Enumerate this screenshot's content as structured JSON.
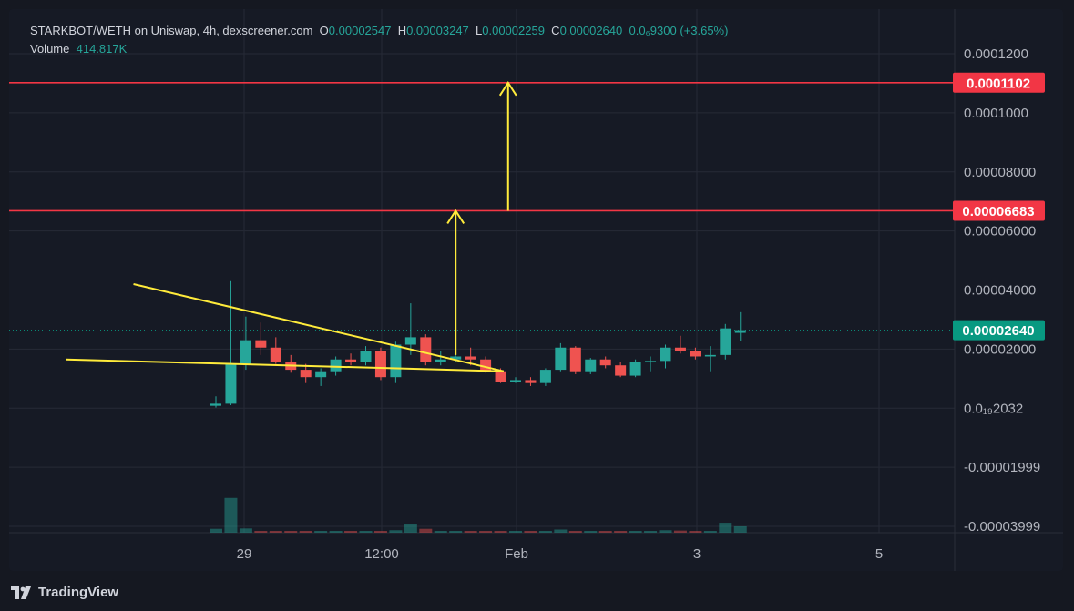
{
  "header": {
    "pair": "STARKBOT/WETH on Uniswap, 4h, dexscreener.com",
    "o_label": "O",
    "o_value": "0.00002547",
    "h_label": "H",
    "h_value": "0.00003247",
    "l_label": "L",
    "l_value": "0.00002259",
    "c_label": "C",
    "c_value": "0.00002640",
    "change": "0.0₆9300 (+3.65%)",
    "volume_label": "Volume",
    "volume_value": "414.817K"
  },
  "brand": {
    "name": "TradingView"
  },
  "colors": {
    "background": "#161a25",
    "up": "#26a69a",
    "down": "#ef5350",
    "grid": "#262a36",
    "text": "#b2b5be",
    "resistance": "#f23645",
    "pattern": "#ffeb3b",
    "current_price": "#089981"
  },
  "chart_data": {
    "type": "candlestick",
    "timeframe": "4h",
    "x_ticks": [
      "29",
      "12:00",
      "Feb",
      "3",
      "5"
    ],
    "y_ticks": [
      "0.0001200",
      "0.0001000",
      "0.00008000",
      "0.00006000",
      "0.00004000",
      "0.00002000",
      "0.0₁₉2032",
      "-0.00001999",
      "-0.00003999"
    ],
    "y_tick_values": [
      0.00012,
      0.0001,
      8e-05,
      6e-05,
      4e-05,
      2e-05,
      0,
      -2e-05,
      -4e-05
    ],
    "ylim": [
      -4e-05,
      0.00012
    ],
    "candles": [
      {
        "o": 8e-07,
        "h": 4e-06,
        "l": 2e-07,
        "c": 1.5e-06,
        "v": 0.11
      },
      {
        "o": 1.5e-06,
        "h": 4.3e-05,
        "l": 1e-06,
        "c": 1.5e-05,
        "v": 0.98
      },
      {
        "o": 1.5e-05,
        "h": 3.1e-05,
        "l": 1.3e-05,
        "c": 2.3e-05,
        "v": 0.12
      },
      {
        "o": 2.3e-05,
        "h": 2.9e-05,
        "l": 1.8e-05,
        "c": 2.05e-05,
        "v": 0.05
      },
      {
        "o": 2.05e-05,
        "h": 2.4e-05,
        "l": 1.5e-05,
        "c": 1.55e-05,
        "v": 0.04
      },
      {
        "o": 1.55e-05,
        "h": 1.8e-05,
        "l": 1.2e-05,
        "c": 1.3e-05,
        "v": 0.04
      },
      {
        "o": 1.3e-05,
        "h": 1.5e-05,
        "l": 8.5e-06,
        "c": 1.05e-05,
        "v": 0.05
      },
      {
        "o": 1.05e-05,
        "h": 1.35e-05,
        "l": 7.5e-06,
        "c": 1.25e-05,
        "v": 0.05
      },
      {
        "o": 1.25e-05,
        "h": 1.75e-05,
        "l": 1.1e-05,
        "c": 1.65e-05,
        "v": 0.05
      },
      {
        "o": 1.65e-05,
        "h": 1.85e-05,
        "l": 1.45e-05,
        "c": 1.55e-05,
        "v": 0.04
      },
      {
        "o": 1.55e-05,
        "h": 2.1e-05,
        "l": 1.45e-05,
        "c": 1.95e-05,
        "v": 0.05
      },
      {
        "o": 1.95e-05,
        "h": 2.05e-05,
        "l": 9.5e-06,
        "c": 1.05e-05,
        "v": 0.04
      },
      {
        "o": 1.05e-05,
        "h": 2.25e-05,
        "l": 8.5e-06,
        "c": 2.15e-05,
        "v": 0.07
      },
      {
        "o": 2.15e-05,
        "h": 3.55e-05,
        "l": 1.8e-05,
        "c": 2.4e-05,
        "v": 0.25
      },
      {
        "o": 2.4e-05,
        "h": 2.5e-05,
        "l": 1.45e-05,
        "c": 1.55e-05,
        "v": 0.11
      },
      {
        "o": 1.55e-05,
        "h": 1.95e-05,
        "l": 1.45e-05,
        "c": 1.65e-05,
        "v": 0.05
      },
      {
        "o": 1.65e-05,
        "h": 1.85e-05,
        "l": 1.55e-05,
        "c": 1.75e-05,
        "v": 0.04
      },
      {
        "o": 1.75e-05,
        "h": 2.05e-05,
        "l": 1.45e-05,
        "c": 1.65e-05,
        "v": 0.04
      },
      {
        "o": 1.65e-05,
        "h": 1.75e-05,
        "l": 1.2e-05,
        "c": 1.25e-05,
        "v": 0.04
      },
      {
        "o": 1.25e-05,
        "h": 1.35e-05,
        "l": 8.5e-06,
        "c": 9e-06,
        "v": 0.05
      },
      {
        "o": 9e-06,
        "h": 1.05e-05,
        "l": 8.5e-06,
        "c": 9.5e-06,
        "v": 0.03
      },
      {
        "o": 9.5e-06,
        "h": 1.05e-05,
        "l": 7.5e-06,
        "c": 8.5e-06,
        "v": 0.03
      },
      {
        "o": 8.5e-06,
        "h": 1.35e-05,
        "l": 7.5e-06,
        "c": 1.3e-05,
        "v": 0.05
      },
      {
        "o": 1.3e-05,
        "h": 2.2e-05,
        "l": 1.25e-05,
        "c": 2.05e-05,
        "v": 0.09
      },
      {
        "o": 2.05e-05,
        "h": 2.1e-05,
        "l": 1.15e-05,
        "c": 1.25e-05,
        "v": 0.04
      },
      {
        "o": 1.25e-05,
        "h": 1.7e-05,
        "l": 1.15e-05,
        "c": 1.65e-05,
        "v": 0.03
      },
      {
        "o": 1.65e-05,
        "h": 1.75e-05,
        "l": 1.35e-05,
        "c": 1.45e-05,
        "v": 0.03
      },
      {
        "o": 1.45e-05,
        "h": 1.55e-05,
        "l": 1.05e-05,
        "c": 1.1e-05,
        "v": 0.03
      },
      {
        "o": 1.1e-05,
        "h": 1.65e-05,
        "l": 1.05e-05,
        "c": 1.55e-05,
        "v": 0.03
      },
      {
        "o": 1.55e-05,
        "h": 1.75e-05,
        "l": 1.25e-05,
        "c": 1.6e-05,
        "v": 0.02
      },
      {
        "o": 1.6e-05,
        "h": 2.15e-05,
        "l": 1.35e-05,
        "c": 2.05e-05,
        "v": 0.07
      },
      {
        "o": 2.05e-05,
        "h": 2.45e-05,
        "l": 1.85e-05,
        "c": 1.95e-05,
        "v": 0.06
      },
      {
        "o": 1.95e-05,
        "h": 2.05e-05,
        "l": 1.65e-05,
        "c": 1.75e-05,
        "v": 0.03
      },
      {
        "o": 1.75e-05,
        "h": 2.1e-05,
        "l": 1.25e-05,
        "c": 1.8e-05,
        "v": 0.04
      },
      {
        "o": 1.8e-05,
        "h": 2.85e-05,
        "l": 1.65e-05,
        "c": 2.7e-05,
        "v": 0.28
      },
      {
        "o": 2.55e-05,
        "h": 3.25e-05,
        "l": 2.26e-05,
        "c": 2.64e-05,
        "v": 0.18
      }
    ],
    "resistance_levels": [
      6.683e-05,
      0.0001102
    ],
    "resistance_labels": [
      "0.00006683",
      "0.0001102"
    ],
    "last_price": 2.64e-05,
    "last_price_label": "0.00002640",
    "triangle": {
      "upper": [
        [
          -5.5,
          4.2e-05
        ],
        [
          19.2,
          1.25e-05
        ]
      ],
      "lower": [
        [
          -10,
          1.65e-05
        ],
        [
          19.2,
          1.25e-05
        ]
      ]
    },
    "targets": [
      {
        "x": 16,
        "from": 1.8e-05,
        "to": 6.683e-05
      },
      {
        "x": 19.5,
        "from": 6.683e-05,
        "to": 0.0001102
      }
    ]
  }
}
